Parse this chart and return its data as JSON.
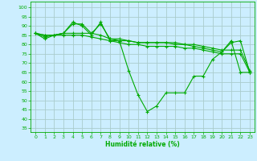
{
  "background_color": "#cceeff",
  "grid_color": "#aacccc",
  "line_color": "#00aa00",
  "marker": "+",
  "xlabel": "Humidité relative (%)",
  "xlim": [
    -0.5,
    23.5
  ],
  "ylim": [
    33,
    103
  ],
  "yticks": [
    35,
    40,
    45,
    50,
    55,
    60,
    65,
    70,
    75,
    80,
    85,
    90,
    95,
    100
  ],
  "xticks": [
    0,
    1,
    2,
    3,
    4,
    5,
    6,
    7,
    8,
    9,
    10,
    11,
    12,
    13,
    14,
    15,
    16,
    17,
    18,
    19,
    20,
    21,
    22,
    23
  ],
  "series": [
    [
      86,
      83,
      85,
      86,
      92,
      90,
      85,
      92,
      82,
      82,
      66,
      53,
      44,
      47,
      54,
      54,
      54,
      63,
      63,
      72,
      76,
      82,
      65,
      65
    ],
    [
      86,
      84,
      85,
      86,
      91,
      91,
      86,
      91,
      83,
      82,
      82,
      81,
      81,
      81,
      81,
      80,
      80,
      79,
      78,
      77,
      76,
      81,
      82,
      65
    ],
    [
      86,
      85,
      85,
      86,
      86,
      86,
      86,
      85,
      83,
      83,
      82,
      81,
      81,
      81,
      81,
      81,
      80,
      80,
      79,
      78,
      77,
      77,
      77,
      66
    ],
    [
      86,
      85,
      85,
      85,
      85,
      85,
      84,
      83,
      82,
      81,
      80,
      80,
      79,
      79,
      79,
      79,
      78,
      78,
      77,
      76,
      75,
      75,
      75,
      65
    ]
  ]
}
